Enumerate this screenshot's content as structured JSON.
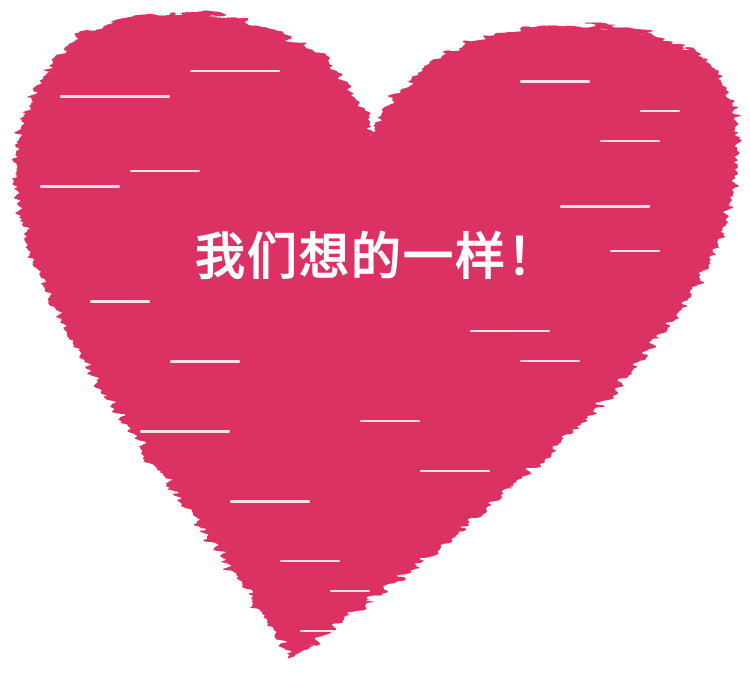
{
  "colors": {
    "heart": "#dc3063",
    "background": "#ffffff",
    "text": "#ffffff"
  },
  "artwork": {
    "shape": "brush-stroke-heart"
  },
  "caption": {
    "text": "我们想的一样！"
  }
}
